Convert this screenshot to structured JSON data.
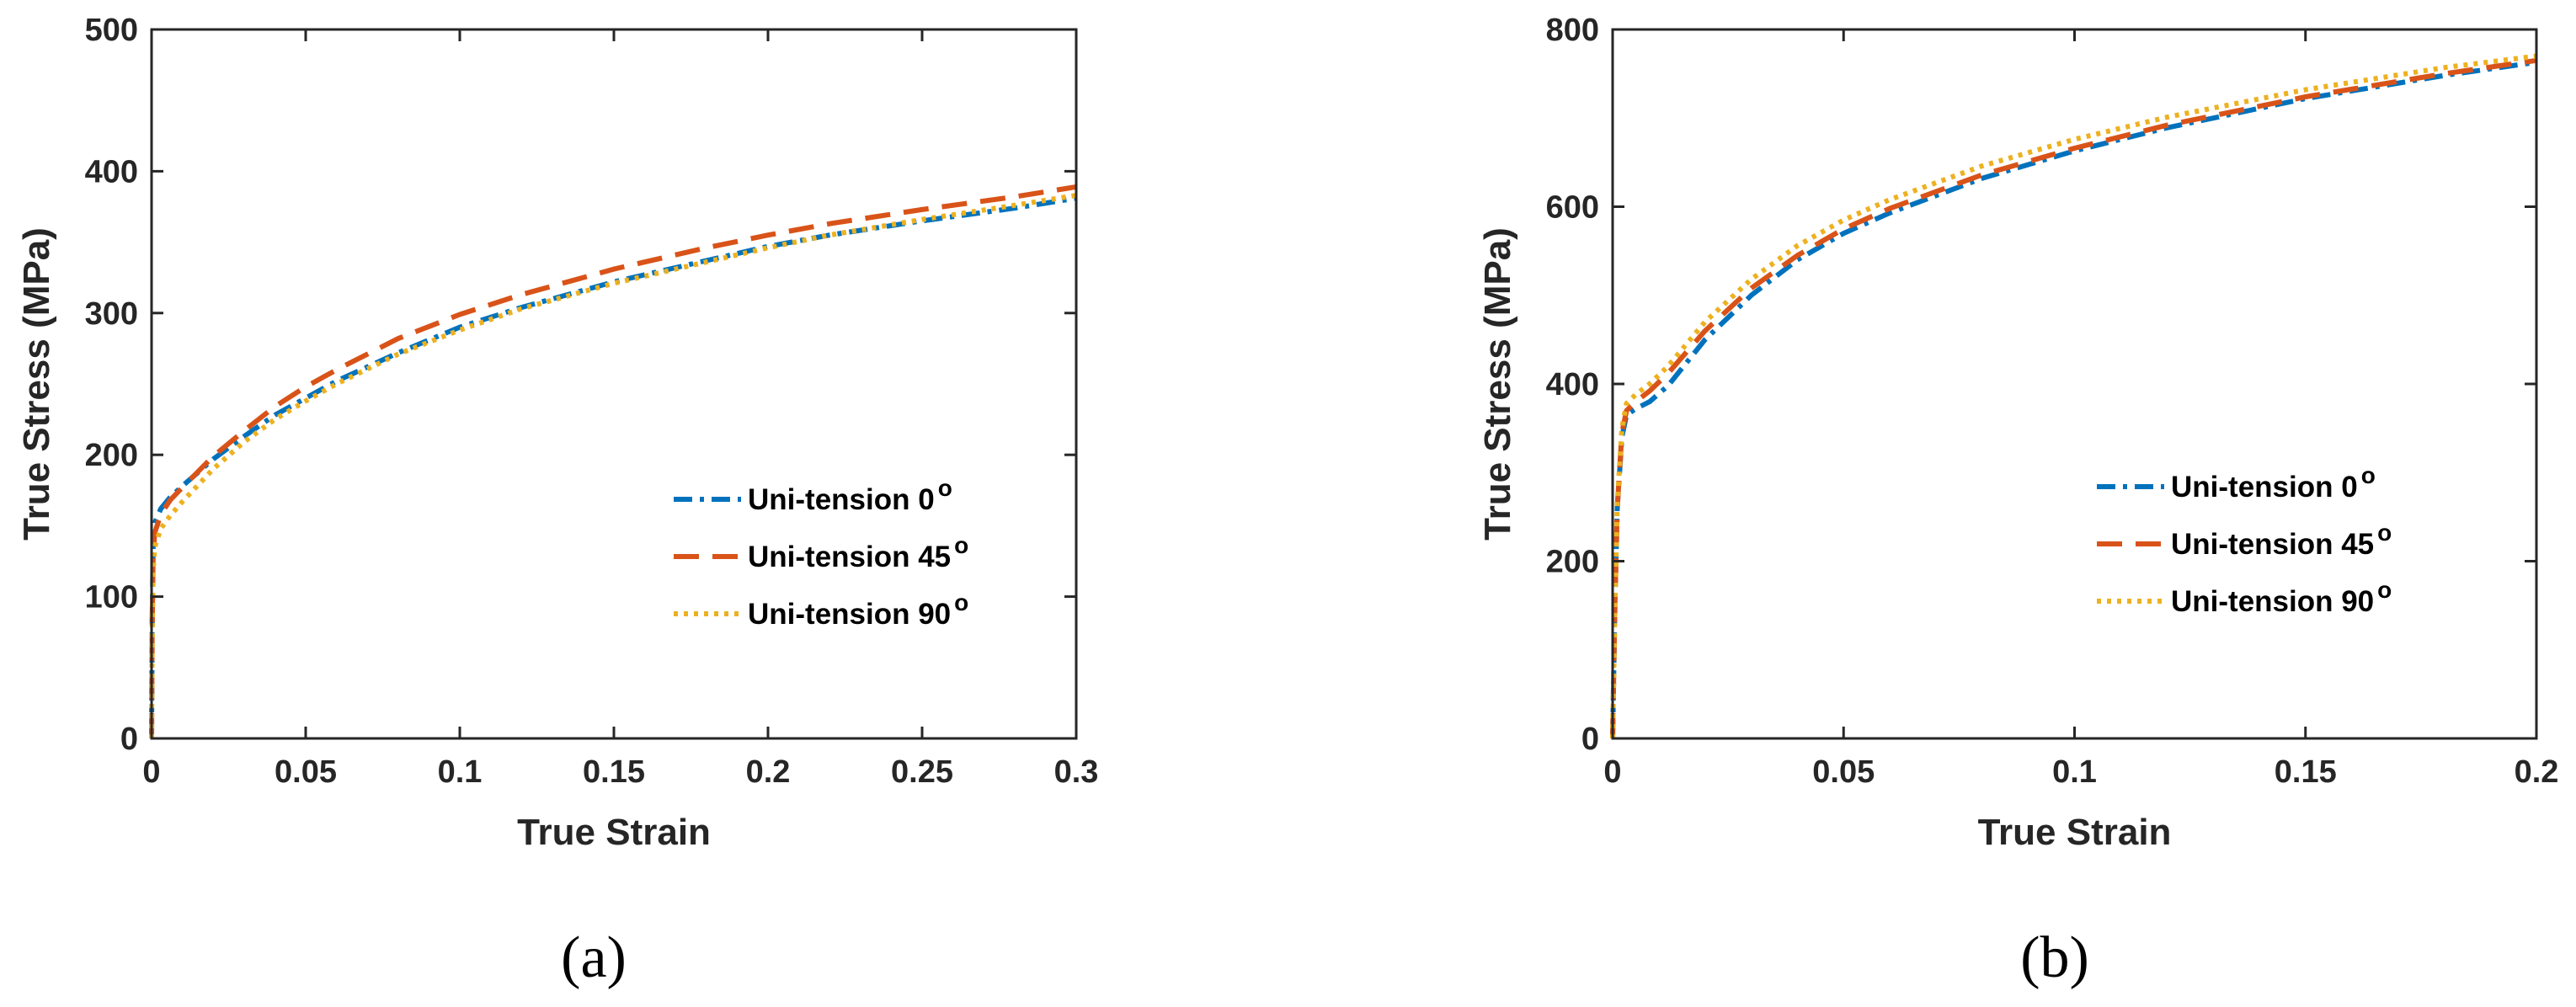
{
  "chart_data": [
    {
      "type": "line",
      "xlabel": "True Strain",
      "ylabel": "True Stress (MPa)",
      "xlim": [
        0,
        0.3
      ],
      "ylim": [
        0,
        500
      ],
      "xticks": [
        "0",
        "0.05",
        "0.1",
        "0.15",
        "0.2",
        "0.25",
        "0.3"
      ],
      "yticks": [
        "0",
        "100",
        "200",
        "300",
        "400",
        "500"
      ],
      "legend_position": "lower-right",
      "caption": "(a)",
      "series": [
        {
          "name": "Uni-tension 0",
          "superscript": "o",
          "color": "#0072BD",
          "style": "dashdot",
          "x": [
            0,
            0.0002,
            0.0005,
            0.001,
            0.003,
            0.006,
            0.01,
            0.02,
            0.03,
            0.04,
            0.05,
            0.06,
            0.08,
            0.1,
            0.12,
            0.15,
            0.18,
            0.2,
            0.22,
            0.25,
            0.28,
            0.3
          ],
          "y": [
            0,
            80,
            135,
            152,
            162,
            170,
            178,
            197,
            213,
            228,
            240,
            252,
            272,
            290,
            304,
            322,
            337,
            347,
            355,
            365,
            374,
            381
          ]
        },
        {
          "name": "Uni-tension 45",
          "superscript": "o",
          "color": "#D95319",
          "style": "dashed",
          "x": [
            0,
            0.0002,
            0.0005,
            0.001,
            0.003,
            0.006,
            0.01,
            0.02,
            0.03,
            0.04,
            0.05,
            0.06,
            0.08,
            0.1,
            0.12,
            0.15,
            0.18,
            0.2,
            0.22,
            0.25,
            0.28,
            0.3
          ],
          "y": [
            0,
            75,
            128,
            145,
            158,
            168,
            177,
            199,
            217,
            234,
            248,
            260,
            282,
            299,
            313,
            331,
            346,
            355,
            363,
            373,
            382,
            389
          ]
        },
        {
          "name": "Uni-tension 90",
          "superscript": "o",
          "color": "#EDB120",
          "style": "dotted",
          "x": [
            0,
            0.0002,
            0.0005,
            0.001,
            0.003,
            0.006,
            0.01,
            0.02,
            0.03,
            0.04,
            0.05,
            0.06,
            0.08,
            0.1,
            0.12,
            0.15,
            0.18,
            0.2,
            0.22,
            0.25,
            0.28,
            0.3
          ],
          "y": [
            0,
            70,
            118,
            135,
            148,
            157,
            167,
            190,
            209,
            225,
            238,
            250,
            271,
            288,
            303,
            321,
            336,
            346,
            355,
            366,
            376,
            383
          ]
        }
      ]
    },
    {
      "type": "line",
      "xlabel": "True Strain",
      "ylabel": "True Stress (MPa)",
      "xlim": [
        0,
        0.2
      ],
      "ylim": [
        0,
        800
      ],
      "xticks": [
        "0",
        "0.05",
        "0.1",
        "0.15",
        "0.2"
      ],
      "yticks": [
        "0",
        "200",
        "400",
        "600",
        "800"
      ],
      "legend_position": "center-right",
      "caption": "(b)",
      "series": [
        {
          "name": "Uni-tension 0",
          "superscript": "o",
          "color": "#0072BD",
          "style": "dashdot",
          "x": [
            0,
            0.0005,
            0.001,
            0.002,
            0.003,
            0.005,
            0.008,
            0.012,
            0.02,
            0.03,
            0.04,
            0.05,
            0.06,
            0.08,
            0.1,
            0.12,
            0.15,
            0.18,
            0.2
          ],
          "y": [
            0,
            150,
            260,
            340,
            365,
            372,
            380,
            398,
            450,
            500,
            540,
            570,
            593,
            632,
            663,
            689,
            722,
            748,
            763
          ]
        },
        {
          "name": "Uni-tension 45",
          "superscript": "o",
          "color": "#D95319",
          "style": "dashed",
          "x": [
            0,
            0.0005,
            0.001,
            0.002,
            0.003,
            0.005,
            0.008,
            0.012,
            0.02,
            0.03,
            0.04,
            0.05,
            0.06,
            0.08,
            0.1,
            0.12,
            0.15,
            0.18,
            0.2
          ],
          "y": [
            0,
            150,
            260,
            345,
            370,
            380,
            392,
            412,
            460,
            508,
            545,
            575,
            598,
            636,
            666,
            692,
            724,
            750,
            765
          ]
        },
        {
          "name": "Uni-tension 90",
          "superscript": "o",
          "color": "#EDB120",
          "style": "dotted",
          "x": [
            0,
            0.0005,
            0.001,
            0.002,
            0.003,
            0.005,
            0.008,
            0.012,
            0.02,
            0.03,
            0.04,
            0.05,
            0.06,
            0.08,
            0.1,
            0.12,
            0.15,
            0.18,
            0.2
          ],
          "y": [
            0,
            150,
            265,
            350,
            378,
            388,
            400,
            420,
            470,
            518,
            556,
            585,
            608,
            646,
            676,
            701,
            732,
            757,
            770
          ]
        }
      ]
    }
  ]
}
